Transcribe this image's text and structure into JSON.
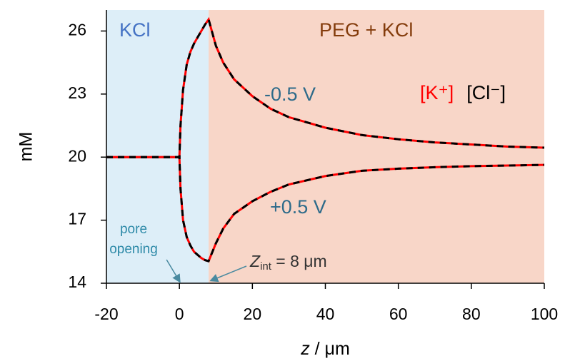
{
  "chart_data": {
    "type": "line",
    "xlabel": {
      "italic": "z",
      "rest": " / μm"
    },
    "ylabel": "mM",
    "xlim": [
      -20,
      100
    ],
    "ylim": [
      14,
      27
    ],
    "xticks": [
      -20,
      0,
      20,
      40,
      60,
      80,
      100
    ],
    "yticks": [
      14,
      17,
      20,
      23,
      26
    ],
    "regions": [
      {
        "label": "KCl",
        "x": [
          -20,
          8
        ],
        "color": "#ddeef8",
        "label_color": "#4472c4"
      },
      {
        "label": "PEG + KCl",
        "x": [
          8,
          100
        ],
        "color": "#f8d6c8",
        "label_color": "#843c0c"
      }
    ],
    "x": [
      -20,
      -10,
      -5,
      0,
      0.3,
      1,
      2,
      3,
      4,
      5,
      6,
      7,
      8,
      10,
      12,
      15,
      20,
      25,
      30,
      40,
      50,
      60,
      70,
      80,
      90,
      100
    ],
    "curve_labels": [
      "-0.5 V",
      "+0.5 V"
    ],
    "series": [
      {
        "name": "[K⁺]",
        "color": "#ff0000",
        "dashed": false,
        "values": [
          [
            20,
            20,
            20,
            20,
            21.5,
            23.2,
            24.4,
            25.0,
            25.4,
            25.7,
            26.0,
            26.3,
            26.55,
            25.3,
            24.5,
            23.7,
            22.9,
            22.3,
            21.9,
            21.4,
            21.05,
            20.85,
            20.7,
            20.6,
            20.5,
            20.45
          ],
          [
            20,
            20,
            20,
            20,
            18.5,
            17.0,
            16.2,
            15.8,
            15.5,
            15.35,
            15.2,
            15.1,
            15.05,
            15.9,
            16.6,
            17.3,
            17.9,
            18.35,
            18.7,
            19.1,
            19.35,
            19.45,
            19.52,
            19.57,
            19.6,
            19.63
          ]
        ]
      },
      {
        "name": "[Cl⁻]",
        "color": "#000000",
        "dashed": true,
        "values": [
          [
            20,
            20,
            20,
            20,
            21.5,
            23.2,
            24.4,
            25.0,
            25.4,
            25.7,
            26.0,
            26.3,
            26.55,
            25.3,
            24.5,
            23.7,
            22.9,
            22.3,
            21.9,
            21.4,
            21.05,
            20.85,
            20.7,
            20.6,
            20.5,
            20.45
          ],
          [
            20,
            20,
            20,
            20,
            18.5,
            17.0,
            16.2,
            15.8,
            15.5,
            15.35,
            15.2,
            15.1,
            15.05,
            15.9,
            16.6,
            17.3,
            17.9,
            18.35,
            18.7,
            19.1,
            19.35,
            19.45,
            19.52,
            19.57,
            19.6,
            19.63
          ]
        ]
      }
    ],
    "annotations": [
      {
        "lines": [
          "pore",
          "opening"
        ],
        "x": 0
      },
      {
        "symbol": "Z",
        "subscript": "int",
        "rest": " = 8 μm",
        "x": 8
      }
    ]
  }
}
